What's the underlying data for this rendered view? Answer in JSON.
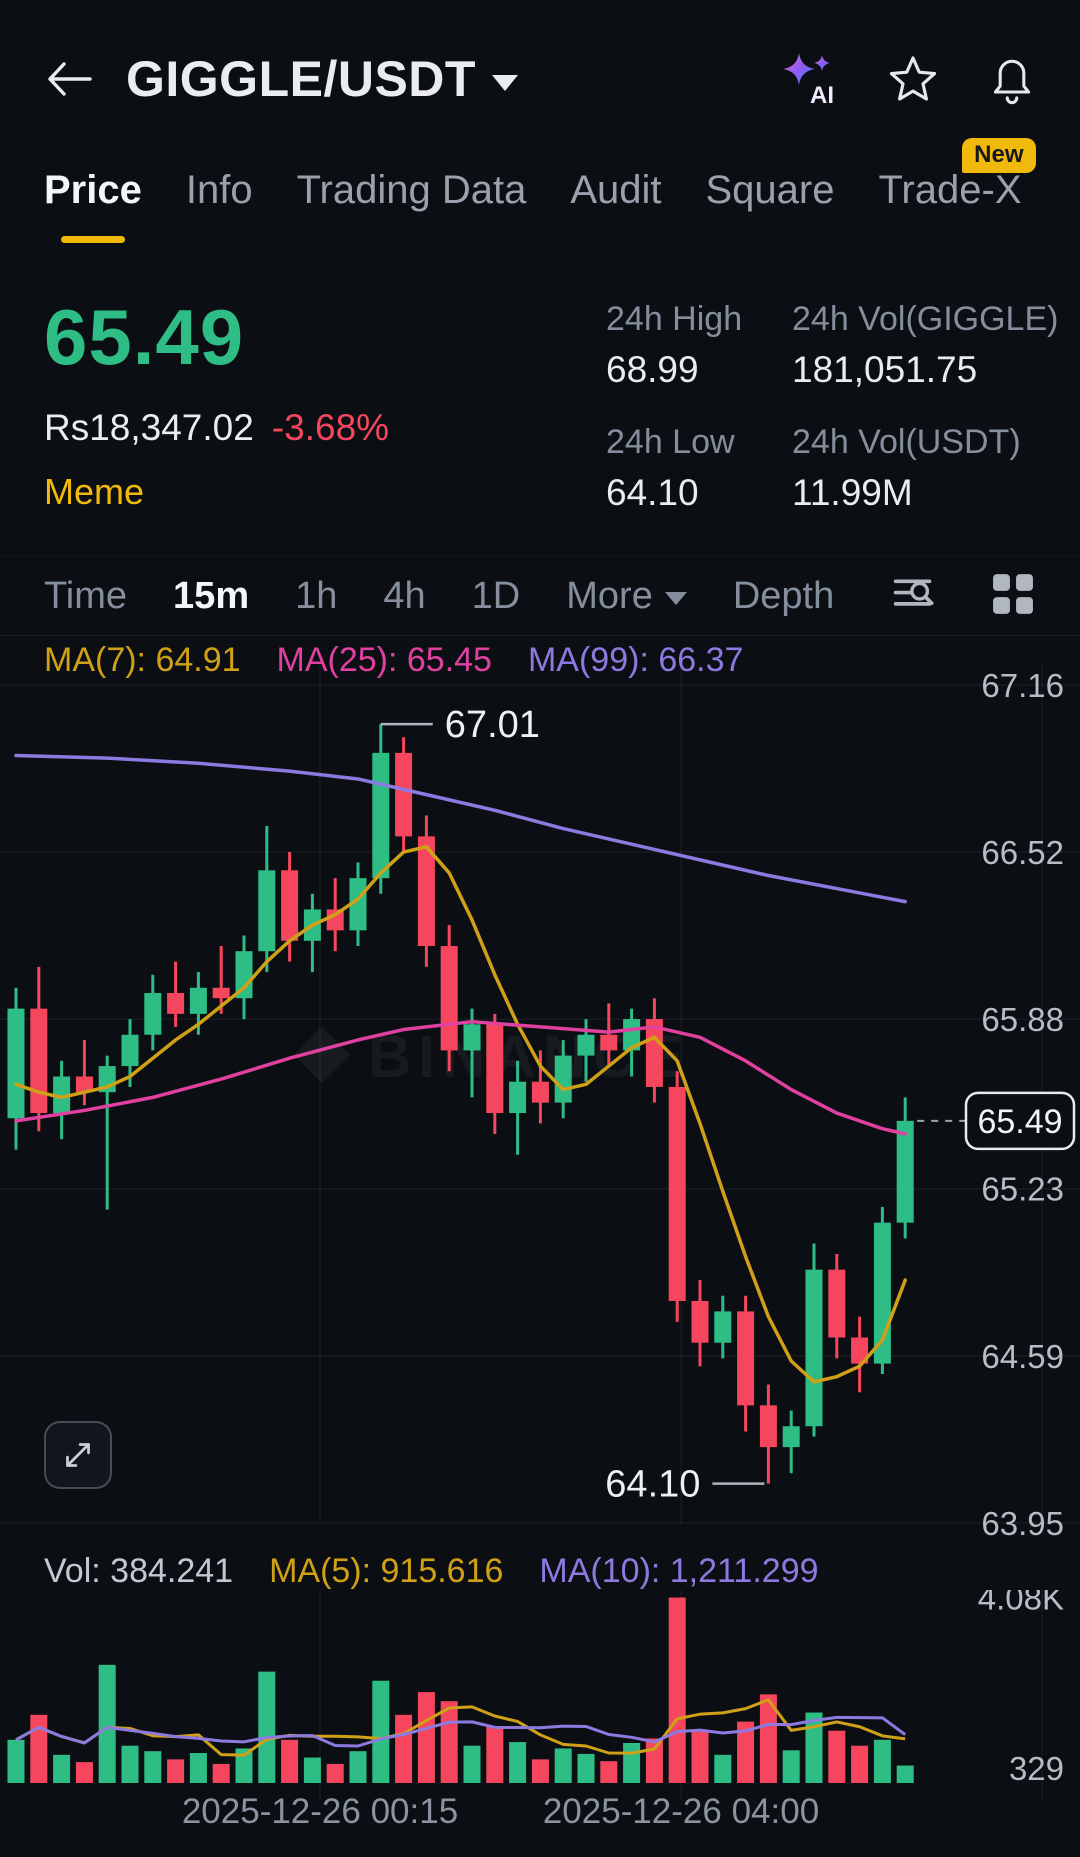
{
  "colors": {
    "bg": "#0b0f14",
    "up": "#2ebd85",
    "down": "#f6465d",
    "accent": "#f0b90b",
    "text": "#eaecef",
    "muted": "#848e9c",
    "axis": "#b7bdc6",
    "ma7": "#d0a017",
    "ma25": "#e0409f",
    "ma99": "#8d7ae0",
    "ma5": "#d0a017",
    "ma10": "#8d7ae0"
  },
  "watermark": "BINANCE",
  "header": {
    "title": "GIGGLE/USDT"
  },
  "tabs": {
    "items": [
      "Price",
      "Info",
      "Trading Data",
      "Audit",
      "Square",
      "Trade-X"
    ],
    "active": "Price",
    "new_badge": "New"
  },
  "ticker": {
    "last_price": "65.49",
    "fiat_value": "Rs18,347.02",
    "change_percent": "-3.68%",
    "tag": "Meme",
    "stats": [
      {
        "label": "24h High",
        "value": "68.99"
      },
      {
        "label": "24h Vol(GIGGLE)",
        "value": "181,051.75"
      },
      {
        "label": "24h Low",
        "value": "64.10"
      },
      {
        "label": "24h Vol(USDT)",
        "value": "11.99M"
      }
    ]
  },
  "toolbar": {
    "items": [
      "Time",
      "15m",
      "1h",
      "4h",
      "1D",
      "More",
      "Depth"
    ],
    "active": "15m"
  },
  "indicators": {
    "price": [
      {
        "text": "MA(7): 64.91"
      },
      {
        "text": "MA(25): 65.45"
      },
      {
        "text": "MA(99): 66.37"
      }
    ],
    "volume": [
      {
        "text": "Vol: 384.241"
      },
      {
        "text": "MA(5): 915.616"
      },
      {
        "text": "MA(10): 1,211.299"
      }
    ]
  },
  "chart_data": {
    "type": "candlestick_with_volume",
    "symbol": "GIGGLE/USDT",
    "interval": "15m",
    "price_axis": {
      "ticks": [
        67.16,
        66.52,
        65.88,
        65.23,
        64.59,
        63.95
      ],
      "ylim": [
        63.85,
        67.25
      ]
    },
    "volume_axis": {
      "max": 4400,
      "ticks": [
        {
          "label": "4.08K",
          "value": 4080
        },
        {
          "label": "329",
          "value": 329
        }
      ]
    },
    "x_axis_labels": [
      "2025-12-26 00:15",
      "2025-12-26 04:00"
    ],
    "annotations": {
      "high_label": "67.01",
      "high_index": 16,
      "low_label": "64.10",
      "low_index": 33,
      "last_price": 65.49,
      "last_price_label": "65.49"
    },
    "candles": [
      [
        65.5,
        66.0,
        65.38,
        65.92,
        950
      ],
      [
        65.92,
        66.08,
        65.45,
        65.52,
        1500
      ],
      [
        65.52,
        65.72,
        65.42,
        65.66,
        620
      ],
      [
        65.66,
        65.8,
        65.55,
        65.6,
        460
      ],
      [
        65.6,
        65.74,
        65.15,
        65.7,
        2600
      ],
      [
        65.7,
        65.88,
        65.62,
        65.82,
        820
      ],
      [
        65.82,
        66.05,
        65.76,
        65.98,
        700
      ],
      [
        65.98,
        66.1,
        65.85,
        65.9,
        520
      ],
      [
        65.9,
        66.06,
        65.82,
        66.0,
        660
      ],
      [
        66.0,
        66.16,
        65.9,
        65.96,
        420
      ],
      [
        65.96,
        66.2,
        65.88,
        66.14,
        760
      ],
      [
        66.14,
        66.62,
        66.06,
        66.45,
        2450
      ],
      [
        66.45,
        66.52,
        66.1,
        66.18,
        950
      ],
      [
        66.18,
        66.36,
        66.06,
        66.3,
        560
      ],
      [
        66.3,
        66.42,
        66.14,
        66.22,
        420
      ],
      [
        66.22,
        66.48,
        66.16,
        66.42,
        700
      ],
      [
        66.42,
        67.01,
        66.36,
        66.9,
        2250
      ],
      [
        66.9,
        66.96,
        66.52,
        66.58,
        1500
      ],
      [
        66.58,
        66.66,
        66.08,
        66.16,
        2000
      ],
      [
        66.16,
        66.24,
        65.68,
        65.76,
        1800
      ],
      [
        65.76,
        65.92,
        65.58,
        65.86,
        820
      ],
      [
        65.86,
        65.9,
        65.44,
        65.52,
        1250
      ],
      [
        65.52,
        65.72,
        65.36,
        65.64,
        900
      ],
      [
        65.64,
        65.76,
        65.48,
        65.56,
        520
      ],
      [
        65.56,
        65.8,
        65.5,
        65.74,
        760
      ],
      [
        65.74,
        65.88,
        65.64,
        65.82,
        640
      ],
      [
        65.82,
        65.94,
        65.7,
        65.76,
        480
      ],
      [
        65.76,
        65.92,
        65.66,
        65.88,
        880
      ],
      [
        65.88,
        65.96,
        65.56,
        65.62,
        980
      ],
      [
        65.62,
        65.68,
        64.72,
        64.8,
        4080
      ],
      [
        64.8,
        64.88,
        64.55,
        64.64,
        1150
      ],
      [
        64.64,
        64.82,
        64.58,
        64.76,
        620
      ],
      [
        64.76,
        64.82,
        64.3,
        64.4,
        1350
      ],
      [
        64.4,
        64.48,
        64.1,
        64.24,
        1950
      ],
      [
        64.24,
        64.38,
        64.14,
        64.32,
        720
      ],
      [
        64.32,
        65.02,
        64.28,
        64.92,
        1550
      ],
      [
        64.92,
        64.98,
        64.58,
        64.66,
        1150
      ],
      [
        64.66,
        64.74,
        64.45,
        64.56,
        820
      ],
      [
        64.56,
        65.16,
        64.52,
        65.1,
        950
      ],
      [
        65.1,
        65.58,
        65.04,
        65.49,
        384
      ]
    ],
    "ma_overlays": [
      {
        "name": "MA(7)",
        "value": 64.91,
        "color_key": "ma7",
        "points": [
          [
            0,
            65.63
          ],
          [
            1,
            65.6
          ],
          [
            2,
            65.58
          ],
          [
            3,
            65.6
          ],
          [
            4,
            65.62
          ],
          [
            5,
            65.66
          ],
          [
            6,
            65.73
          ],
          [
            7,
            65.8
          ],
          [
            8,
            65.86
          ],
          [
            9,
            65.93
          ],
          [
            10,
            66.0
          ],
          [
            11,
            66.1
          ],
          [
            12,
            66.18
          ],
          [
            13,
            66.24
          ],
          [
            14,
            66.28
          ],
          [
            15,
            66.34
          ],
          [
            16,
            66.44
          ],
          [
            17,
            66.52
          ],
          [
            18,
            66.54
          ],
          [
            19,
            66.44
          ],
          [
            20,
            66.26
          ],
          [
            21,
            66.05
          ],
          [
            22,
            65.86
          ],
          [
            23,
            65.7
          ],
          [
            24,
            65.61
          ],
          [
            25,
            65.63
          ],
          [
            26,
            65.7
          ],
          [
            27,
            65.77
          ],
          [
            28,
            65.81
          ],
          [
            29,
            65.72
          ],
          [
            30,
            65.48
          ],
          [
            31,
            65.22
          ],
          [
            32,
            64.97
          ],
          [
            33,
            64.74
          ],
          [
            34,
            64.57
          ],
          [
            35,
            64.49
          ],
          [
            36,
            64.51
          ],
          [
            37,
            64.55
          ],
          [
            38,
            64.65
          ],
          [
            39,
            64.88
          ]
        ]
      },
      {
        "name": "MA(25)",
        "value": 65.45,
        "color_key": "ma25",
        "points": [
          [
            0,
            65.49
          ],
          [
            3,
            65.53
          ],
          [
            6,
            65.58
          ],
          [
            9,
            65.65
          ],
          [
            12,
            65.73
          ],
          [
            15,
            65.8
          ],
          [
            17,
            65.84
          ],
          [
            20,
            65.87
          ],
          [
            23,
            65.85
          ],
          [
            26,
            65.83
          ],
          [
            28,
            65.85
          ],
          [
            30,
            65.81
          ],
          [
            32,
            65.72
          ],
          [
            34,
            65.61
          ],
          [
            36,
            65.52
          ],
          [
            38,
            65.46
          ],
          [
            39,
            65.44
          ]
        ]
      },
      {
        "name": "MA(99)",
        "value": 66.37,
        "color_key": "ma99",
        "points": [
          [
            0,
            66.89
          ],
          [
            4,
            66.88
          ],
          [
            8,
            66.86
          ],
          [
            12,
            66.83
          ],
          [
            15,
            66.8
          ],
          [
            18,
            66.74
          ],
          [
            21,
            66.68
          ],
          [
            24,
            66.61
          ],
          [
            27,
            66.55
          ],
          [
            30,
            66.49
          ],
          [
            33,
            66.43
          ],
          [
            36,
            66.38
          ],
          [
            39,
            66.33
          ]
        ]
      }
    ],
    "volume_ma": [
      {
        "name": "MA(5)",
        "value": "915.616",
        "period": 5,
        "color_key": "ma5"
      },
      {
        "name": "MA(10)",
        "value": "1,211.299",
        "period": 10,
        "color_key": "ma10"
      }
    ]
  }
}
